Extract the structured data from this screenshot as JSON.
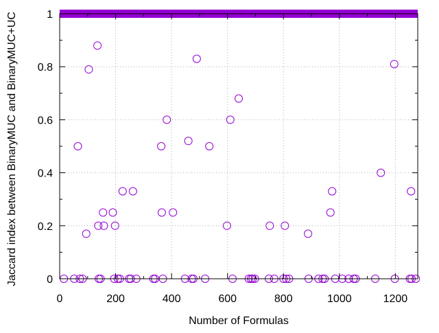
{
  "chart_data": {
    "type": "scatter",
    "title": "",
    "xlabel": "Number of Formulas",
    "ylabel": "Jaccard index between BinaryMUC and BinaryMUC+UC",
    "xlim": [
      0,
      1280
    ],
    "ylim": [
      0,
      1
    ],
    "xticks": [
      0,
      200,
      400,
      600,
      800,
      1000,
      1200
    ],
    "yticks": [
      0,
      0.2,
      0.4,
      0.6,
      0.8,
      1
    ],
    "xtick_labels": [
      "0",
      "200",
      "400",
      "600",
      "800",
      "1000",
      "1200"
    ],
    "ytick_labels": [
      "0",
      "0.2",
      "0.4",
      "0.6",
      "0.8",
      "1"
    ],
    "grid": true,
    "marker": "open-circle",
    "marker_color": "#9400d3",
    "dense_band": {
      "y": 1,
      "x_range": [
        0,
        1280
      ],
      "note": "many overlapping points at y=1 across all x"
    },
    "points": [
      [
        15,
        0
      ],
      [
        52,
        0
      ],
      [
        65,
        0.5
      ],
      [
        72,
        0
      ],
      [
        82,
        0
      ],
      [
        95,
        0.17
      ],
      [
        104,
        0.79
      ],
      [
        135,
        0.88
      ],
      [
        138,
        0.2
      ],
      [
        140,
        0
      ],
      [
        146,
        0
      ],
      [
        155,
        0.25
      ],
      [
        158,
        0.2
      ],
      [
        190,
        0.25
      ],
      [
        195,
        0
      ],
      [
        198,
        0.2
      ],
      [
        208,
        0
      ],
      [
        215,
        0
      ],
      [
        225,
        0.33
      ],
      [
        248,
        0
      ],
      [
        254,
        0
      ],
      [
        262,
        0.33
      ],
      [
        274,
        0
      ],
      [
        335,
        0
      ],
      [
        341,
        0
      ],
      [
        363,
        0.5
      ],
      [
        365,
        0.25
      ],
      [
        369,
        0
      ],
      [
        383,
        0.6
      ],
      [
        405,
        0.25
      ],
      [
        448,
        0
      ],
      [
        460,
        0.52
      ],
      [
        472,
        0
      ],
      [
        478,
        0
      ],
      [
        490,
        0.83
      ],
      [
        520,
        0
      ],
      [
        535,
        0.5
      ],
      [
        598,
        0.2
      ],
      [
        610,
        0.6
      ],
      [
        618,
        0
      ],
      [
        640,
        0.68
      ],
      [
        676,
        0
      ],
      [
        684,
        0
      ],
      [
        690,
        0
      ],
      [
        698,
        0
      ],
      [
        748,
        0
      ],
      [
        751,
        0.2
      ],
      [
        767,
        0
      ],
      [
        800,
        0
      ],
      [
        805,
        0.2
      ],
      [
        810,
        0
      ],
      [
        820,
        0
      ],
      [
        888,
        0.17
      ],
      [
        890,
        0
      ],
      [
        925,
        0
      ],
      [
        940,
        0
      ],
      [
        947,
        0
      ],
      [
        968,
        0.25
      ],
      [
        974,
        0.33
      ],
      [
        985,
        0
      ],
      [
        1010,
        0
      ],
      [
        1033,
        0
      ],
      [
        1051,
        0
      ],
      [
        1058,
        0
      ],
      [
        1128,
        0
      ],
      [
        1148,
        0.4
      ],
      [
        1196,
        0.81
      ],
      [
        1198,
        0
      ],
      [
        1252,
        0
      ],
      [
        1256,
        0.33
      ],
      [
        1258,
        0
      ],
      [
        1273,
        0
      ]
    ]
  }
}
